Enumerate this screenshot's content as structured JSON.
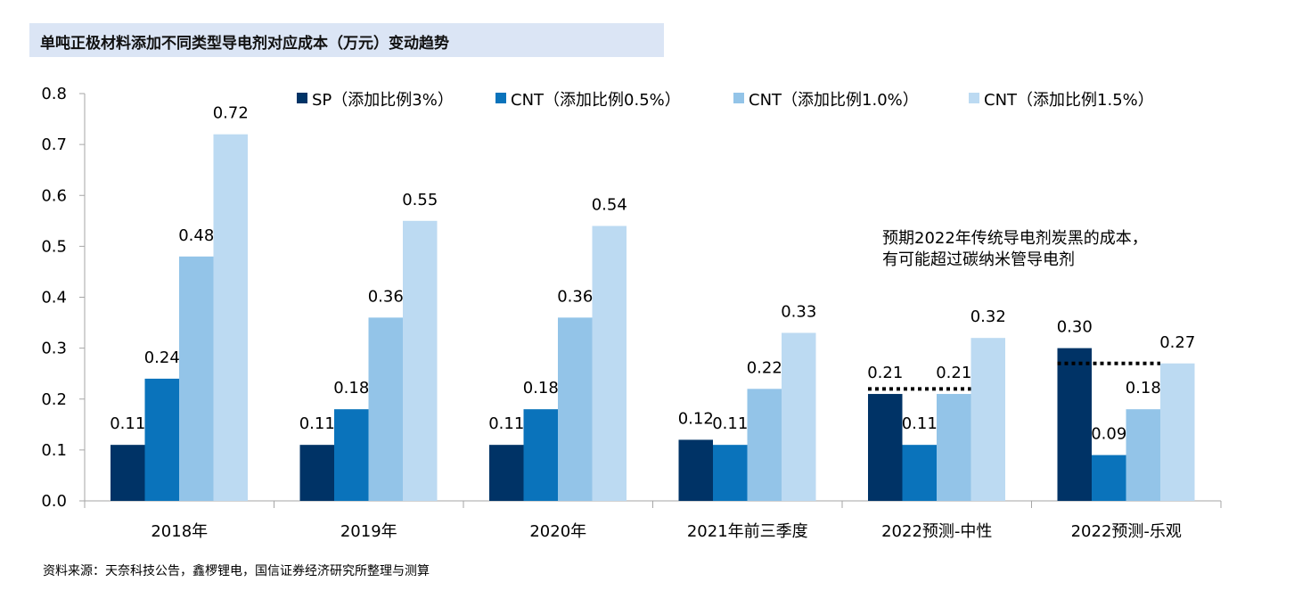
{
  "title": "单吨正极材料添加不同类型导电剂对应成本（万元）变动趋势",
  "source": "资料来源：天奈科技公告，鑫椤锂电，国信证券经济研究所整理与测算",
  "note": [
    "预期2022年传统导电剂炭黑的成本，",
    "有可能超过碳纳米管导电剂"
  ],
  "colors": [
    "#003366",
    "#0a73bb",
    "#93c4e8",
    "#bcdaf2"
  ],
  "chart_data": {
    "type": "bar",
    "categories": [
      "2018年",
      "2019年",
      "2020年",
      "2021年前三季度",
      "2022预测-中性",
      "2022预测-乐观"
    ],
    "series": [
      {
        "name": "SP（添加比例3%）",
        "values": [
          0.11,
          0.11,
          0.11,
          0.12,
          0.21,
          0.3
        ]
      },
      {
        "name": "CNT（添加比例0.5%）",
        "values": [
          0.24,
          0.18,
          0.18,
          0.11,
          0.11,
          0.09
        ]
      },
      {
        "name": "CNT（添加比例1.0%）",
        "values": [
          0.48,
          0.36,
          0.36,
          0.22,
          0.21,
          0.18
        ]
      },
      {
        "name": "CNT（添加比例1.5%）",
        "values": [
          0.72,
          0.55,
          0.54,
          0.33,
          0.32,
          0.27
        ]
      }
    ],
    "ylim": [
      0,
      0.8
    ],
    "yticks": [
      "0.0",
      "0.1",
      "0.2",
      "0.3",
      "0.4",
      "0.5",
      "0.6",
      "0.7",
      "0.8"
    ],
    "legend_position": "top",
    "grid": false,
    "reference_lines": [
      {
        "category": "2022预测-中性",
        "value": 0.22
      },
      {
        "category": "2022预测-乐观",
        "value": 0.27
      }
    ]
  }
}
